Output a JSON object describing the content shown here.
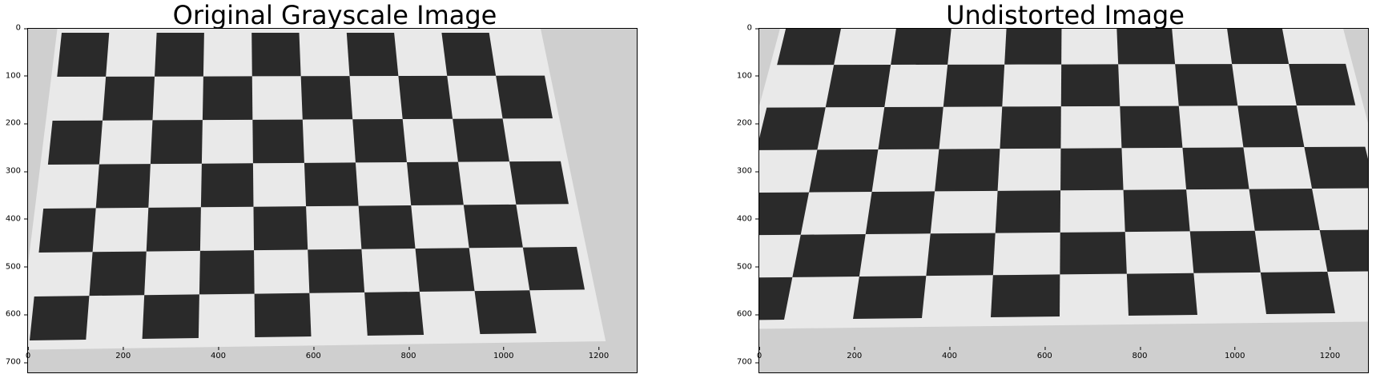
{
  "figure": {
    "left": {
      "title": "Original Grayscale Image",
      "yticks": [
        "0",
        "100",
        "200",
        "300",
        "400",
        "500",
        "600",
        "700"
      ],
      "xticks": [
        "0",
        "200",
        "400",
        "600",
        "800",
        "1000",
        "1200"
      ]
    },
    "right": {
      "title": "Undistorted Image",
      "yticks": [
        "0",
        "100",
        "200",
        "300",
        "400",
        "500",
        "600",
        "700"
      ],
      "xticks": [
        "0",
        "200",
        "400",
        "600",
        "800",
        "1000",
        "1200"
      ]
    }
  },
  "image_extent": {
    "width": 1280,
    "height": 720
  },
  "colors": {
    "dark_square": "#2a2a2a",
    "light_square": "#e9e9e9",
    "background": "#cfcfcf"
  }
}
